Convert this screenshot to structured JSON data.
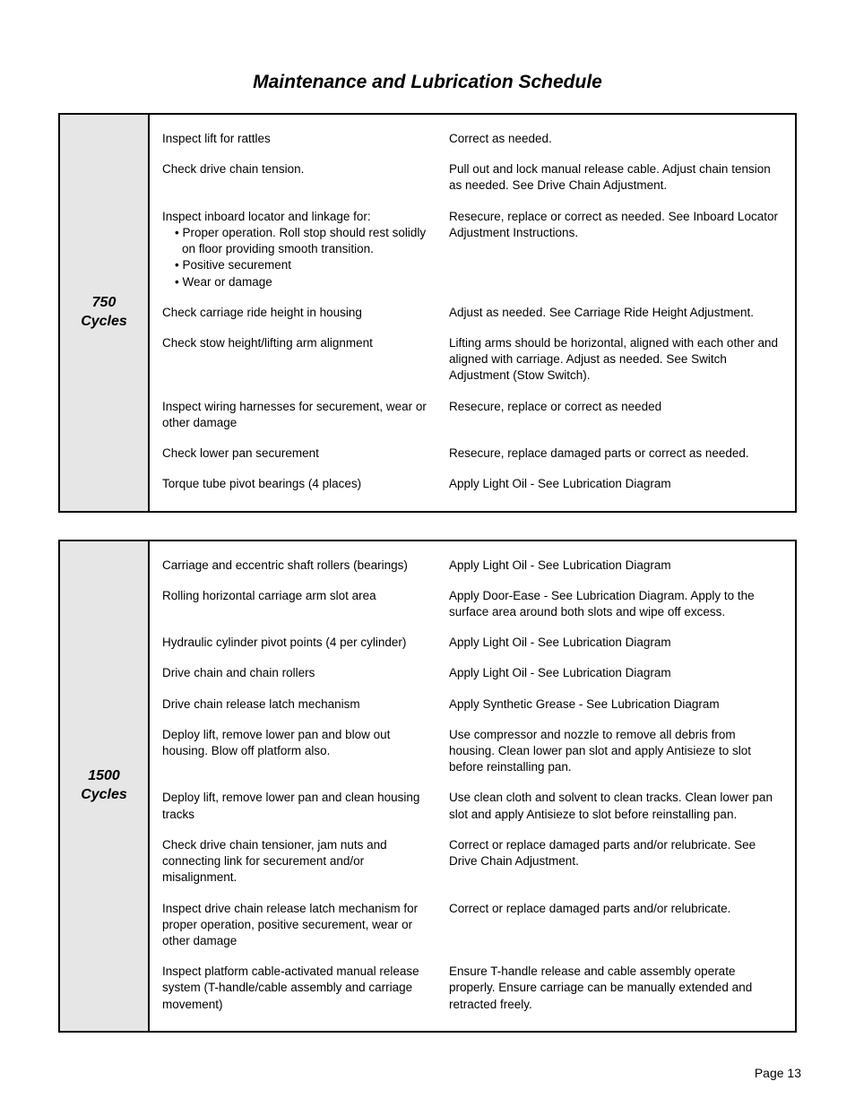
{
  "title": "Maintenance and Lubrication Schedule",
  "pageNumber": "Page 13",
  "styling": {
    "pageBg": "#ffffff",
    "textColor": "#000000",
    "cycleCellBg": "#e6e6e6",
    "borderColor": "#000000",
    "titleFontSize": 21,
    "bodyFontSize": 13.5,
    "cycleFontSize": 16,
    "tableWidth": 820,
    "cycleColWidth": 90,
    "taskColWidth": 320
  },
  "tables": [
    {
      "cycleLabel": "750\nCycles",
      "rows": [
        {
          "task": "Inspect lift for rattles",
          "action": "Correct as needed."
        },
        {
          "task": "Check drive chain tension.",
          "action": "Pull out and lock manual release cable.  Adjust chain tension as needed.  See Drive Chain Adjustment."
        },
        {
          "taskIntro": "Inspect inboard locator and linkage for:",
          "bullets": [
            "Proper operation.  Roll stop should rest solidly on floor providing smooth transition.",
            "Positive securement",
            "Wear or damage"
          ],
          "action": "Resecure, replace or correct as needed.  See Inboard Locator Adjustment Instructions."
        },
        {
          "task": "Check carriage ride height in housing",
          "action": "Adjust as needed.  See Carriage Ride Height Adjustment."
        },
        {
          "task": "Check stow height/lifting arm alignment",
          "action": "Lifting arms should be horizontal, aligned with each other and aligned with carriage.  Adjust as needed.  See Switch Adjustment (Stow Switch)."
        },
        {
          "task": "Inspect wiring harnesses for securement, wear or other damage",
          "action": "Resecure, replace or correct as needed"
        },
        {
          "task": "Check lower pan securement",
          "action": "Resecure, replace damaged parts or correct as needed."
        },
        {
          "task": "Torque tube pivot bearings (4 places)",
          "action": "Apply Light Oil - See Lubrication Diagram"
        }
      ]
    },
    {
      "cycleLabel": "1500\nCycles",
      "rows": [
        {
          "task": "Carriage and eccentric shaft rollers (bearings)",
          "action": "Apply Light Oil - See Lubrication Diagram"
        },
        {
          "task": "Rolling horizontal carriage arm slot area",
          "action": "Apply Door-Ease - See Lubrication Diagram.  Apply to the surface area around both slots and wipe off excess."
        },
        {
          "task": "Hydraulic cylinder pivot points (4 per cylinder)",
          "action": "Apply Light Oil - See Lubrication Diagram"
        },
        {
          "task": "Drive chain and chain rollers",
          "action": "Apply Light Oil - See Lubrication Diagram"
        },
        {
          "task": "Drive chain release latch mechanism",
          "action": "Apply Synthetic Grease - See Lubrication Diagram"
        },
        {
          "task": "Deploy lift, remove lower pan and blow out housing.  Blow off platform also.",
          "action": "Use compressor and nozzle to remove all debris from housing.  Clean lower pan slot and apply Antisieze to slot before reinstalling pan."
        },
        {
          "task": "Deploy lift, remove lower pan and clean housing tracks",
          "action": "Use clean cloth and solvent to clean tracks.  Clean lower pan slot and apply Antisieze to slot before reinstalling pan."
        },
        {
          "task": "Check drive chain tensioner, jam nuts and connecting link for securement and/or misalignment.",
          "action": "Correct or replace damaged parts and/or relubricate.  See Drive Chain Adjustment."
        },
        {
          "task": "Inspect drive chain release latch mechanism for proper operation, positive securement, wear or other damage",
          "action": "Correct or replace damaged parts and/or relubricate."
        },
        {
          "task": "Inspect platform cable-activated manual release system (T-handle/cable assembly and carriage movement)",
          "action": "Ensure T-handle release and cable assembly operate properly.  Ensure carriage can be manually extended and retracted freely."
        }
      ]
    }
  ]
}
